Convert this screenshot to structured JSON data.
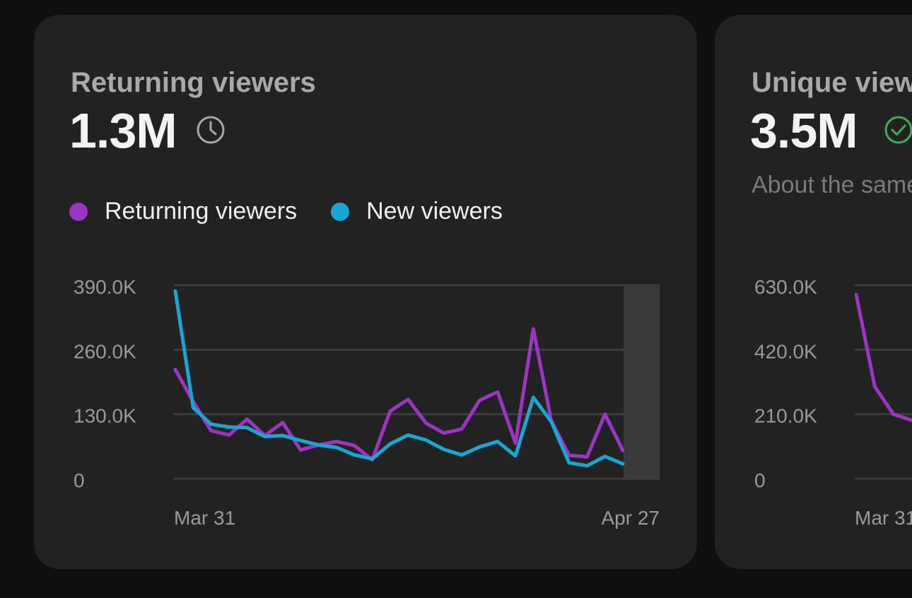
{
  "cards": [
    {
      "title": "Returning viewers",
      "value": "1.3M",
      "status_icon": "clock-icon",
      "legend": [
        {
          "label": "Returning viewers",
          "color": "#9b35c4"
        },
        {
          "label": "New viewers",
          "color": "#1aa6d2"
        }
      ],
      "chart_data": {
        "type": "line",
        "x_ticks": [
          "Mar 31",
          "Apr 27"
        ],
        "y_ticks": [
          "390.0K",
          "260.0K",
          "130.0K",
          "0"
        ],
        "ylim": [
          0,
          390000
        ],
        "grid": true,
        "highlighted_period": "last day",
        "series": [
          {
            "name": "Returning viewers",
            "color": "#9b35c4",
            "values": [
              220000,
              155000,
              97000,
              88000,
              120000,
              87000,
              113000,
              58000,
              68000,
              75000,
              67000,
              38000,
              136000,
              160000,
              112000,
              92000,
              100000,
              158000,
              175000,
              72000,
              302000,
              117000,
              47000,
              44000,
              130000,
              57000
            ]
          },
          {
            "name": "New viewers",
            "color": "#1aa6d2",
            "values": [
              378000,
              143000,
              110000,
              104000,
              103000,
              85000,
              87000,
              77000,
              68000,
              63000,
              48000,
              40000,
              70000,
              88000,
              78000,
              59000,
              48000,
              64000,
              75000,
              46000,
              164000,
              115000,
              32000,
              26000,
              45000,
              30000
            ]
          }
        ]
      }
    },
    {
      "title": "Unique viewers",
      "value": "3.5M",
      "status_icon": "check-circle-icon",
      "subtitle": "About the same as usual",
      "chart_data": {
        "type": "line",
        "x_ticks": [
          "Mar 31"
        ],
        "y_ticks": [
          "630.0K",
          "420.0K",
          "210.0K",
          "0"
        ],
        "ylim": [
          0,
          630000
        ],
        "grid": true,
        "series": [
          {
            "name": "Unique viewers",
            "color": "#9b35c4",
            "values": [
              600000,
              300000,
              210000,
              190000
            ]
          }
        ]
      }
    }
  ]
}
